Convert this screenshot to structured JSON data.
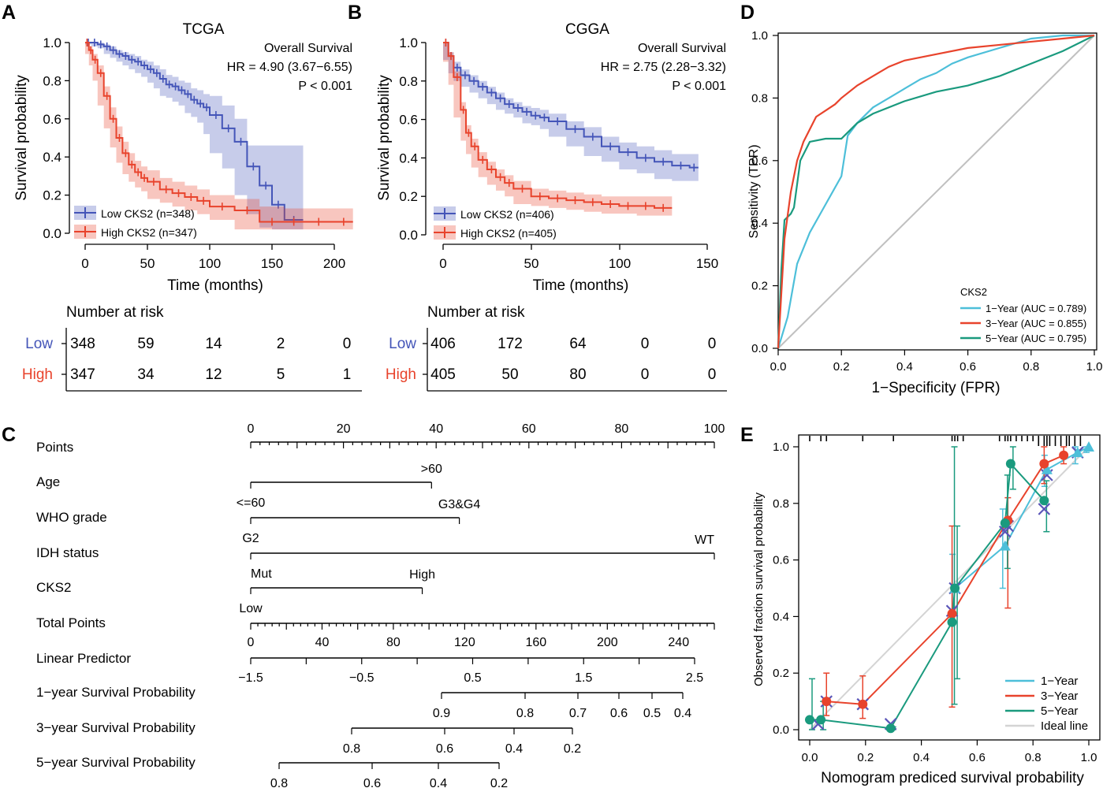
{
  "colors": {
    "blue": "#4455b8",
    "red": "#e8432c",
    "cyan": "#4dbfd9",
    "teal": "#1a9a7e",
    "gray": "#c0c0c0",
    "ideal": "#d4d4d4",
    "navy": "#4a4aa8"
  },
  "chart_data": [
    {
      "panel": "A",
      "type": "line",
      "title": "TCGA",
      "xlabel": "Time (months)",
      "ylabel": "Survival probability",
      "xlim": [
        0,
        220
      ],
      "ylim": [
        0,
        1
      ],
      "xticks": [
        "0",
        "50",
        "100",
        "150",
        "200"
      ],
      "yticks": [
        "0.0",
        "0.2",
        "0.4",
        "0.6",
        "0.8",
        "1.0"
      ],
      "annotations": [
        "Overall Survival",
        "HR = 4.90 (3.67−6.55)",
        "P < 0.001"
      ],
      "series": [
        {
          "name": "Low CKS2 (n=348)",
          "color": "blue",
          "x": [
            0,
            5,
            10,
            15,
            20,
            25,
            30,
            35,
            40,
            45,
            50,
            55,
            60,
            65,
            70,
            75,
            80,
            85,
            90,
            95,
            100,
            110,
            120,
            130,
            140,
            150,
            160,
            175
          ],
          "y": [
            1.0,
            1.0,
            0.99,
            0.98,
            0.96,
            0.94,
            0.93,
            0.91,
            0.9,
            0.88,
            0.86,
            0.84,
            0.81,
            0.78,
            0.77,
            0.75,
            0.73,
            0.7,
            0.68,
            0.66,
            0.62,
            0.55,
            0.48,
            0.35,
            0.25,
            0.15,
            0.07,
            0.07
          ],
          "band_upper": [
            1.0,
            1.0,
            1.0,
            0.99,
            0.98,
            0.96,
            0.95,
            0.94,
            0.93,
            0.91,
            0.9,
            0.88,
            0.86,
            0.83,
            0.82,
            0.8,
            0.79,
            0.76,
            0.75,
            0.73,
            0.72,
            0.67,
            0.6,
            0.46,
            0.46,
            0.46,
            0.46,
            0.46
          ],
          "band_lower": [
            1.0,
            0.99,
            0.98,
            0.97,
            0.94,
            0.92,
            0.9,
            0.88,
            0.86,
            0.84,
            0.82,
            0.79,
            0.76,
            0.72,
            0.71,
            0.69,
            0.67,
            0.63,
            0.61,
            0.58,
            0.52,
            0.42,
            0.34,
            0.2,
            0.1,
            0.03,
            0.02,
            0.02
          ]
        },
        {
          "name": "High CKS2 (n=347)",
          "color": "red",
          "x": [
            0,
            3,
            6,
            10,
            15,
            20,
            25,
            30,
            35,
            40,
            45,
            50,
            60,
            70,
            80,
            90,
            100,
            120,
            140,
            160,
            175,
            200,
            215
          ],
          "y": [
            1.0,
            0.96,
            0.91,
            0.84,
            0.72,
            0.6,
            0.5,
            0.42,
            0.36,
            0.32,
            0.29,
            0.27,
            0.23,
            0.21,
            0.19,
            0.17,
            0.14,
            0.12,
            0.06,
            0.06,
            0.06,
            0.06,
            0.06
          ],
          "band_upper": [
            1.0,
            0.98,
            0.94,
            0.88,
            0.77,
            0.66,
            0.56,
            0.48,
            0.42,
            0.38,
            0.35,
            0.33,
            0.29,
            0.27,
            0.25,
            0.23,
            0.2,
            0.18,
            0.14,
            0.13,
            0.13,
            0.13,
            0.13
          ],
          "band_lower": [
            1.0,
            0.94,
            0.88,
            0.8,
            0.67,
            0.55,
            0.45,
            0.37,
            0.31,
            0.27,
            0.24,
            0.22,
            0.18,
            0.16,
            0.14,
            0.12,
            0.1,
            0.07,
            0.02,
            0.02,
            0.02,
            0.02,
            0.02
          ]
        }
      ],
      "risk_table": {
        "title": "Number at risk",
        "rows": [
          {
            "label": "Low",
            "values": [
              "348",
              "59",
              "14",
              "2",
              "0"
            ]
          },
          {
            "label": "High",
            "values": [
              "347",
              "34",
              "12",
              "5",
              "1"
            ]
          }
        ]
      }
    },
    {
      "panel": "B",
      "type": "line",
      "title": "CGGA",
      "xlabel": "Time (months)",
      "ylabel": "Survival probability",
      "xlim": [
        0,
        150
      ],
      "ylim": [
        0,
        1
      ],
      "xticks": [
        "0",
        "50",
        "100",
        "150"
      ],
      "yticks": [
        "0.0",
        "0.2",
        "0.4",
        "0.6",
        "0.8",
        "1.0"
      ],
      "annotations": [
        "Overall Survival",
        "HR = 2.75 (2.28−3.32)",
        "P < 0.001"
      ],
      "series": [
        {
          "name": "Low CKS2 (n=406)",
          "color": "blue",
          "x": [
            0,
            3,
            6,
            10,
            15,
            20,
            25,
            30,
            35,
            40,
            45,
            50,
            55,
            60,
            70,
            80,
            90,
            100,
            110,
            120,
            130,
            140,
            145
          ],
          "y": [
            1.0,
            0.93,
            0.87,
            0.83,
            0.8,
            0.77,
            0.74,
            0.71,
            0.68,
            0.66,
            0.64,
            0.62,
            0.61,
            0.59,
            0.55,
            0.51,
            0.46,
            0.43,
            0.4,
            0.38,
            0.36,
            0.35,
            0.35
          ],
          "band_upper": [
            1.0,
            0.95,
            0.9,
            0.86,
            0.83,
            0.8,
            0.77,
            0.74,
            0.71,
            0.69,
            0.67,
            0.66,
            0.65,
            0.63,
            0.59,
            0.56,
            0.51,
            0.48,
            0.46,
            0.44,
            0.42,
            0.42,
            0.42
          ],
          "band_lower": [
            1.0,
            0.91,
            0.84,
            0.8,
            0.77,
            0.74,
            0.71,
            0.68,
            0.65,
            0.63,
            0.61,
            0.58,
            0.57,
            0.55,
            0.51,
            0.46,
            0.41,
            0.38,
            0.34,
            0.32,
            0.29,
            0.28,
            0.28
          ]
        },
        {
          "name": "High CKS2 (n=405)",
          "color": "red",
          "x": [
            0,
            3,
            6,
            10,
            13,
            16,
            20,
            25,
            30,
            35,
            40,
            50,
            60,
            70,
            80,
            90,
            100,
            110,
            120,
            130
          ],
          "y": [
            1.0,
            0.93,
            0.82,
            0.65,
            0.53,
            0.46,
            0.39,
            0.34,
            0.3,
            0.27,
            0.24,
            0.2,
            0.19,
            0.18,
            0.17,
            0.16,
            0.15,
            0.15,
            0.14,
            0.14
          ],
          "band_upper": [
            1.0,
            0.95,
            0.85,
            0.69,
            0.57,
            0.5,
            0.43,
            0.38,
            0.34,
            0.31,
            0.28,
            0.24,
            0.23,
            0.22,
            0.21,
            0.2,
            0.2,
            0.2,
            0.2,
            0.2
          ],
          "band_lower": [
            1.0,
            0.9,
            0.78,
            0.61,
            0.49,
            0.42,
            0.35,
            0.3,
            0.26,
            0.23,
            0.2,
            0.16,
            0.15,
            0.14,
            0.13,
            0.12,
            0.11,
            0.11,
            0.1,
            0.1
          ]
        }
      ],
      "risk_table": {
        "title": "Number at risk",
        "rows": [
          {
            "label": "Low",
            "values": [
              "406",
              "172",
              "64",
              "0",
              "0"
            ]
          },
          {
            "label": "High",
            "values": [
              "405",
              "50",
              "80",
              "0",
              "0"
            ]
          }
        ]
      }
    },
    {
      "panel": "C",
      "type": "nomogram",
      "rows": [
        {
          "label": "Points",
          "scale": {
            "ticks": [
              "0",
              "20",
              "40",
              "60",
              "80",
              "100"
            ]
          }
        },
        {
          "label": "Age",
          "levels": [
            {
              "text": "<=60",
              "points": 0
            },
            {
              "text": ">60",
              "points": 39
            }
          ]
        },
        {
          "label": "WHO grade",
          "levels": [
            {
              "text": "G2",
              "points": 0
            },
            {
              "text": "G3&G4",
              "points": 45
            }
          ]
        },
        {
          "label": "IDH status",
          "levels": [
            {
              "text": "Mut",
              "points": 0
            },
            {
              "text": "WT",
              "points": 100
            }
          ]
        },
        {
          "label": "CKS2",
          "levels": [
            {
              "text": "Low",
              "points": 0
            },
            {
              "text": "High",
              "points": 37
            }
          ]
        },
        {
          "label": "Total Points",
          "scale": {
            "ticks": [
              "0",
              "40",
              "80",
              "120",
              "160",
              "200",
              "240"
            ],
            "max": 260
          }
        },
        {
          "label": "Linear Predictor",
          "scale": {
            "ticks": [
              "−1.5",
              "−0.5",
              "0.5",
              "1.5",
              "2.5"
            ]
          }
        },
        {
          "label": "1−year Survival Probability",
          "ticks": [
            "0.9",
            "0.8",
            "0.7",
            "0.6",
            "0.5",
            "0.4"
          ]
        },
        {
          "label": "3−year Survival Probability",
          "ticks": [
            "0.8",
            "0.6",
            "0.4",
            "0.2"
          ]
        },
        {
          "label": "5−year Survival Probability",
          "ticks": [
            "0.8",
            "0.6",
            "0.4",
            "0.2"
          ]
        }
      ]
    },
    {
      "panel": "D",
      "type": "line",
      "title": "",
      "xlabel": "1−Specificity (FPR)",
      "ylabel": "Sensitivity (TPR)",
      "xlim": [
        0,
        1
      ],
      "ylim": [
        0,
        1
      ],
      "xticks": [
        "0.0",
        "0.2",
        "0.4",
        "0.6",
        "0.8",
        "1.0"
      ],
      "yticks": [
        "0.0",
        "0.2",
        "0.4",
        "0.6",
        "0.8",
        "1.0"
      ],
      "legend_title": "CKS2",
      "series": [
        {
          "name": "1−Year (AUC = 0.789)",
          "color": "cyan",
          "x": [
            0,
            0.03,
            0.06,
            0.1,
            0.15,
            0.2,
            0.22,
            0.25,
            0.3,
            0.35,
            0.4,
            0.45,
            0.5,
            0.55,
            0.6,
            0.7,
            0.8,
            0.9,
            1.0
          ],
          "y": [
            0,
            0.1,
            0.27,
            0.37,
            0.46,
            0.55,
            0.68,
            0.72,
            0.77,
            0.8,
            0.83,
            0.86,
            0.88,
            0.91,
            0.93,
            0.96,
            0.99,
            1.0,
            1.0
          ]
        },
        {
          "name": "3−Year (AUC = 0.855)",
          "color": "red",
          "x": [
            0,
            0.02,
            0.04,
            0.06,
            0.08,
            0.1,
            0.12,
            0.15,
            0.18,
            0.2,
            0.25,
            0.3,
            0.35,
            0.4,
            0.5,
            0.6,
            0.7,
            0.8,
            0.9,
            1.0
          ],
          "y": [
            0,
            0.35,
            0.5,
            0.6,
            0.66,
            0.7,
            0.74,
            0.76,
            0.78,
            0.8,
            0.84,
            0.87,
            0.9,
            0.92,
            0.94,
            0.96,
            0.97,
            0.98,
            0.99,
            1.0
          ]
        },
        {
          "name": "5−Year (AUC = 0.795)",
          "color": "teal",
          "x": [
            0,
            0.01,
            0.02,
            0.04,
            0.05,
            0.07,
            0.1,
            0.15,
            0.2,
            0.25,
            0.3,
            0.4,
            0.5,
            0.6,
            0.7,
            0.8,
            0.9,
            1.0
          ],
          "y": [
            0,
            0.25,
            0.41,
            0.43,
            0.45,
            0.6,
            0.66,
            0.67,
            0.67,
            0.72,
            0.75,
            0.79,
            0.82,
            0.84,
            0.87,
            0.91,
            0.95,
            1.0
          ]
        },
        {
          "name": "reference",
          "color": "gray",
          "x": [
            0,
            1
          ],
          "y": [
            0,
            1
          ]
        }
      ]
    },
    {
      "panel": "E",
      "type": "scatter",
      "title": "",
      "xlabel": "Nomogram prediced survival probability",
      "ylabel": "Observed fraction survival probability",
      "xlim": [
        0,
        1
      ],
      "ylim": [
        0,
        1
      ],
      "xticks": [
        "0.0",
        "0.2",
        "0.4",
        "0.6",
        "0.8",
        "1.0"
      ],
      "yticks": [
        "0.0",
        "0.2",
        "0.4",
        "0.6",
        "0.8",
        "1.0"
      ],
      "series": [
        {
          "name": "1−Year",
          "color": "cyan",
          "x": [
            0.52,
            0.7,
            0.85,
            0.96,
            1.0
          ],
          "y": [
            0.5,
            0.65,
            0.92,
            0.98,
            1.0
          ],
          "err_low": [
            0.38,
            0.5,
            0.86,
            0.94,
            0.98
          ],
          "err_high": [
            0.62,
            0.78,
            0.97,
            1.0,
            1.0
          ]
        },
        {
          "name": "3−Year",
          "color": "red",
          "x": [
            0.06,
            0.19,
            0.51,
            0.71,
            0.84,
            0.91
          ],
          "y": [
            0.1,
            0.09,
            0.41,
            0.74,
            0.94,
            0.97
          ],
          "err_low": [
            0.05,
            0.04,
            0.08,
            0.43,
            0.87,
            0.94
          ],
          "err_high": [
            0.2,
            0.19,
            0.72,
            0.82,
            1.0,
            1.0
          ]
        },
        {
          "name": "5−Year",
          "color": "teal",
          "x": [
            0.0,
            0.04,
            0.29,
            0.51,
            0.52,
            0.7,
            0.72,
            0.84
          ],
          "y": [
            0.035,
            0.035,
            0.005,
            0.38,
            0.5,
            0.73,
            0.94,
            0.81
          ],
          "err_low": [
            0.0,
            0.0,
            0.0,
            0.09,
            0.18,
            0.57,
            0.85,
            0.7
          ],
          "err_high": [
            0.18,
            0.1,
            0.01,
            1.0,
            0.72,
            0.9,
            1.0,
            0.88
          ]
        },
        {
          "name": "Ideal line",
          "color": "ideal",
          "x": [
            0,
            1
          ],
          "y": [
            0,
            1
          ]
        }
      ],
      "x_markers": {
        "x": [
          0.03,
          0.06,
          0.19,
          0.29,
          0.51,
          0.52,
          0.7,
          0.71,
          0.84,
          0.85,
          0.96
        ],
        "y": [
          0.02,
          0.1,
          0.09,
          0.02,
          0.42,
          0.5,
          0.7,
          0.72,
          0.78,
          0.9,
          0.98
        ]
      }
    }
  ],
  "panel_labels": [
    "A",
    "B",
    "C",
    "D",
    "E"
  ]
}
